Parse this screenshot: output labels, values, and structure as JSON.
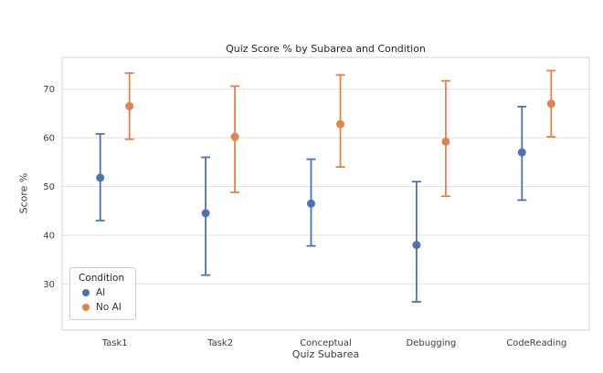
{
  "chart_data": {
    "type": "scatter",
    "subtype": "pointplot-with-error-bars",
    "title": "Quiz Score % by Subarea and Condition",
    "xlabel": "Quiz Subarea",
    "ylabel": "Score %",
    "legend_title": "Condition",
    "legend_position": "lower left",
    "grid": "horizontal",
    "categories": [
      "Task1",
      "Task2",
      "Conceptual",
      "Debugging",
      "CodeReading"
    ],
    "yticks": [
      30,
      40,
      50,
      60,
      70
    ],
    "ylim": [
      20.5,
      76.5
    ],
    "series": [
      {
        "name": "AI",
        "color": "#4C72B0",
        "means": [
          51.8,
          44.5,
          46.5,
          38.0,
          57.0
        ],
        "ci_low": [
          43.0,
          31.8,
          37.8,
          26.3,
          47.2
        ],
        "ci_high": [
          60.8,
          56.0,
          55.6,
          51.0,
          66.4
        ]
      },
      {
        "name": "No AI",
        "color": "#DD8452",
        "means": [
          66.5,
          60.2,
          62.8,
          59.2,
          67.0
        ],
        "ci_low": [
          59.7,
          48.8,
          54.0,
          48.0,
          60.2
        ],
        "ci_high": [
          73.3,
          70.6,
          72.9,
          71.7,
          73.8
        ]
      }
    ]
  }
}
